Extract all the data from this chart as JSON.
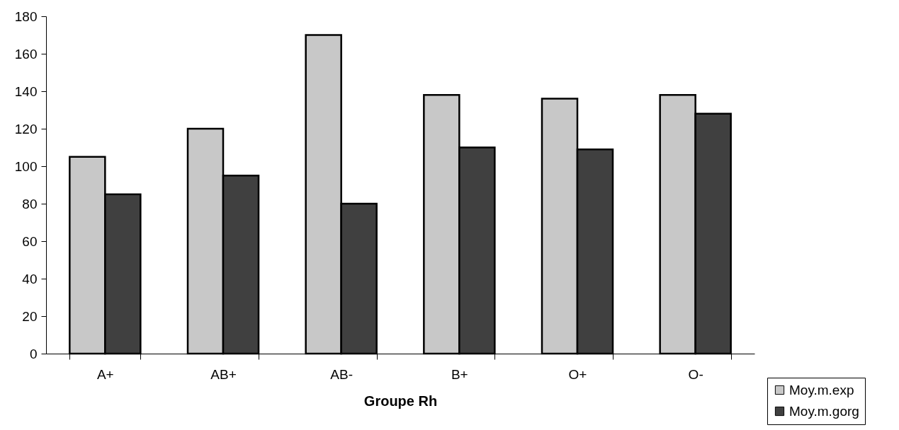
{
  "chart_data": {
    "type": "bar",
    "xlabel": "Groupe Rh",
    "categories": [
      "A+",
      "AB+",
      "AB-",
      "B+",
      "O+",
      "O-"
    ],
    "series": [
      {
        "name": "Moy.m.exp",
        "color": "#c8c8c8",
        "values": [
          105,
          120,
          170,
          138,
          136,
          138
        ]
      },
      {
        "name": "Moy.m.gorg",
        "color": "#404040",
        "values": [
          85,
          95,
          80,
          110,
          109,
          128
        ]
      }
    ],
    "ylim": [
      0,
      180
    ],
    "yticks": [
      0,
      20,
      40,
      60,
      80,
      100,
      120,
      140,
      160,
      180
    ],
    "grid": false,
    "legend": "bottom right"
  }
}
